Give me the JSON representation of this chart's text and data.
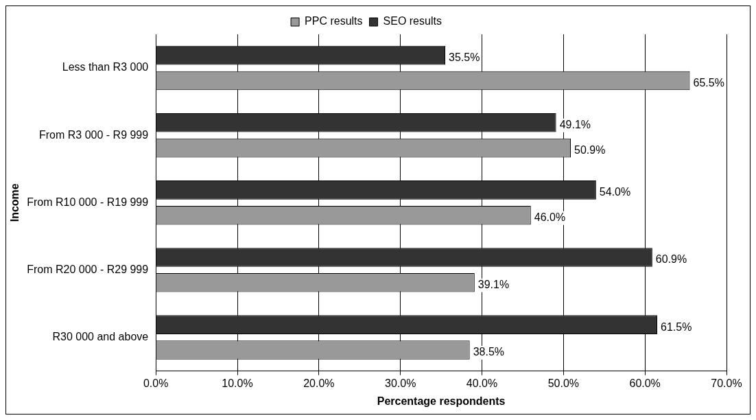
{
  "chart_data": {
    "type": "bar",
    "orientation": "horizontal",
    "ylabel": "Income",
    "xlabel": "Percentage respondents",
    "categories": [
      "Less than R3 000",
      "From R3 000 - R9 999",
      "From R10 000 - R19 999",
      "From R20 000 - R29 999",
      "R30 000 and above"
    ],
    "series": [
      {
        "name": "PPC results",
        "color": "#999999",
        "values": [
          65.5,
          50.9,
          46.0,
          39.1,
          38.5
        ],
        "value_labels": [
          "65.5%",
          "50.9%",
          "46.0%",
          "39.1%",
          "38.5%"
        ]
      },
      {
        "name": "SEO results",
        "color": "#333333",
        "values": [
          35.5,
          49.1,
          54.0,
          60.9,
          61.5
        ],
        "value_labels": [
          "35.5%",
          "49.1%",
          "54.0%",
          "60.9%",
          "61.5%"
        ]
      }
    ],
    "xlim": [
      0,
      70
    ],
    "xticks": [
      {
        "value": 0,
        "label": "0.0%"
      },
      {
        "value": 10,
        "label": "10.0%"
      },
      {
        "value": 20,
        "label": "20.0%"
      },
      {
        "value": 30,
        "label": "30.0%"
      },
      {
        "value": 40,
        "label": "40.0%"
      },
      {
        "value": 50,
        "label": "50.0%"
      },
      {
        "value": 60,
        "label": "60.0%"
      },
      {
        "value": 70,
        "label": "70.0%"
      }
    ],
    "grid": "x",
    "legend": "top"
  }
}
